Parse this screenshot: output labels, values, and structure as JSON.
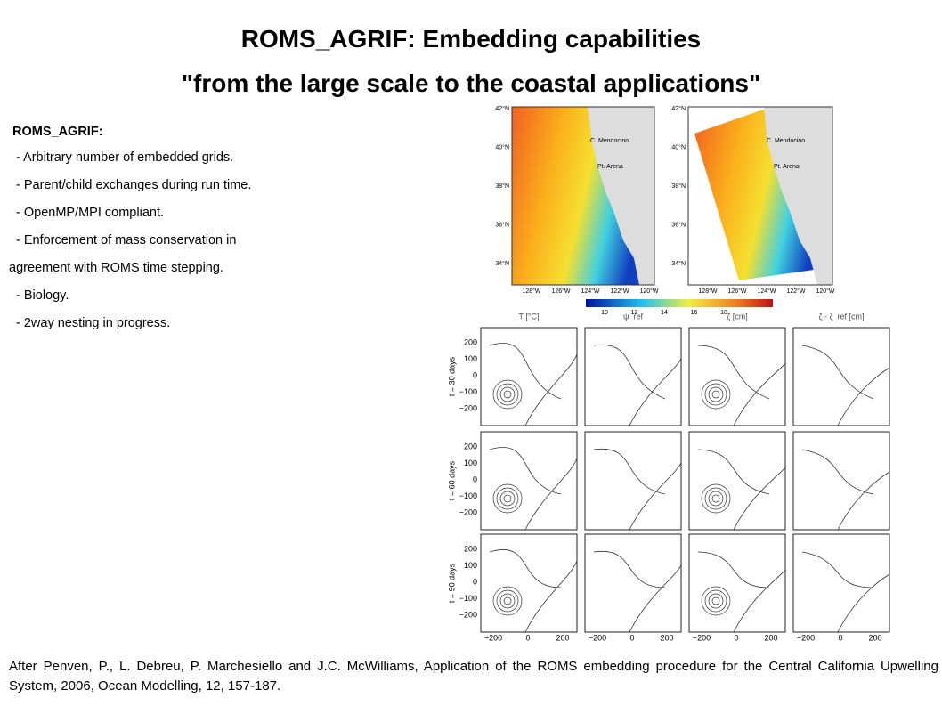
{
  "header": {
    "title_line1": "ROMS_AGRIF: Embedding capabilities",
    "title_line2": "\"from the large scale to the coastal applications\""
  },
  "intro": {
    "heading": "ROMS_AGRIF:",
    "bullets": [
      "- Arbitrary number of embedded grids.",
      "- Parent/child exchanges during run time.",
      "- OpenMP/MPI compliant.",
      "- Enforcement of mass conservation in",
      "agreement with ROMS time stepping.",
      "- Biology.",
      "- 2way nesting in progress."
    ]
  },
  "maps": {
    "lat_labels": [
      "42°N",
      "40°N",
      "38°N",
      "36°N",
      "34°N"
    ],
    "lon_labels": [
      "128°W",
      "126°W",
      "124°W",
      "122°W",
      "120°W"
    ],
    "places": [
      "C. Mendocino",
      "Pt. Arena"
    ],
    "colorbar_ticks": [
      "10",
      "12",
      "14",
      "16",
      "18"
    ]
  },
  "contours": {
    "column_titles": [
      "T [°C]",
      "ψ_ref",
      "ζ [cm]",
      "ζ - ζ_ref [cm]"
    ],
    "row_labels": [
      "t = 30 days",
      "t = 60 days",
      "t = 90 days"
    ],
    "yticks": [
      "200",
      "100",
      "0",
      "−100",
      "−200"
    ],
    "xticks": [
      "−200",
      "0",
      "200"
    ]
  },
  "citation": "After Penven, P., L. Debreu, P. Marchesiello and J.C. McWilliams, Application of the ROMS embedding procedure for the Central California Upwelling System, 2006, Ocean Modelling, 12, 157-187."
}
